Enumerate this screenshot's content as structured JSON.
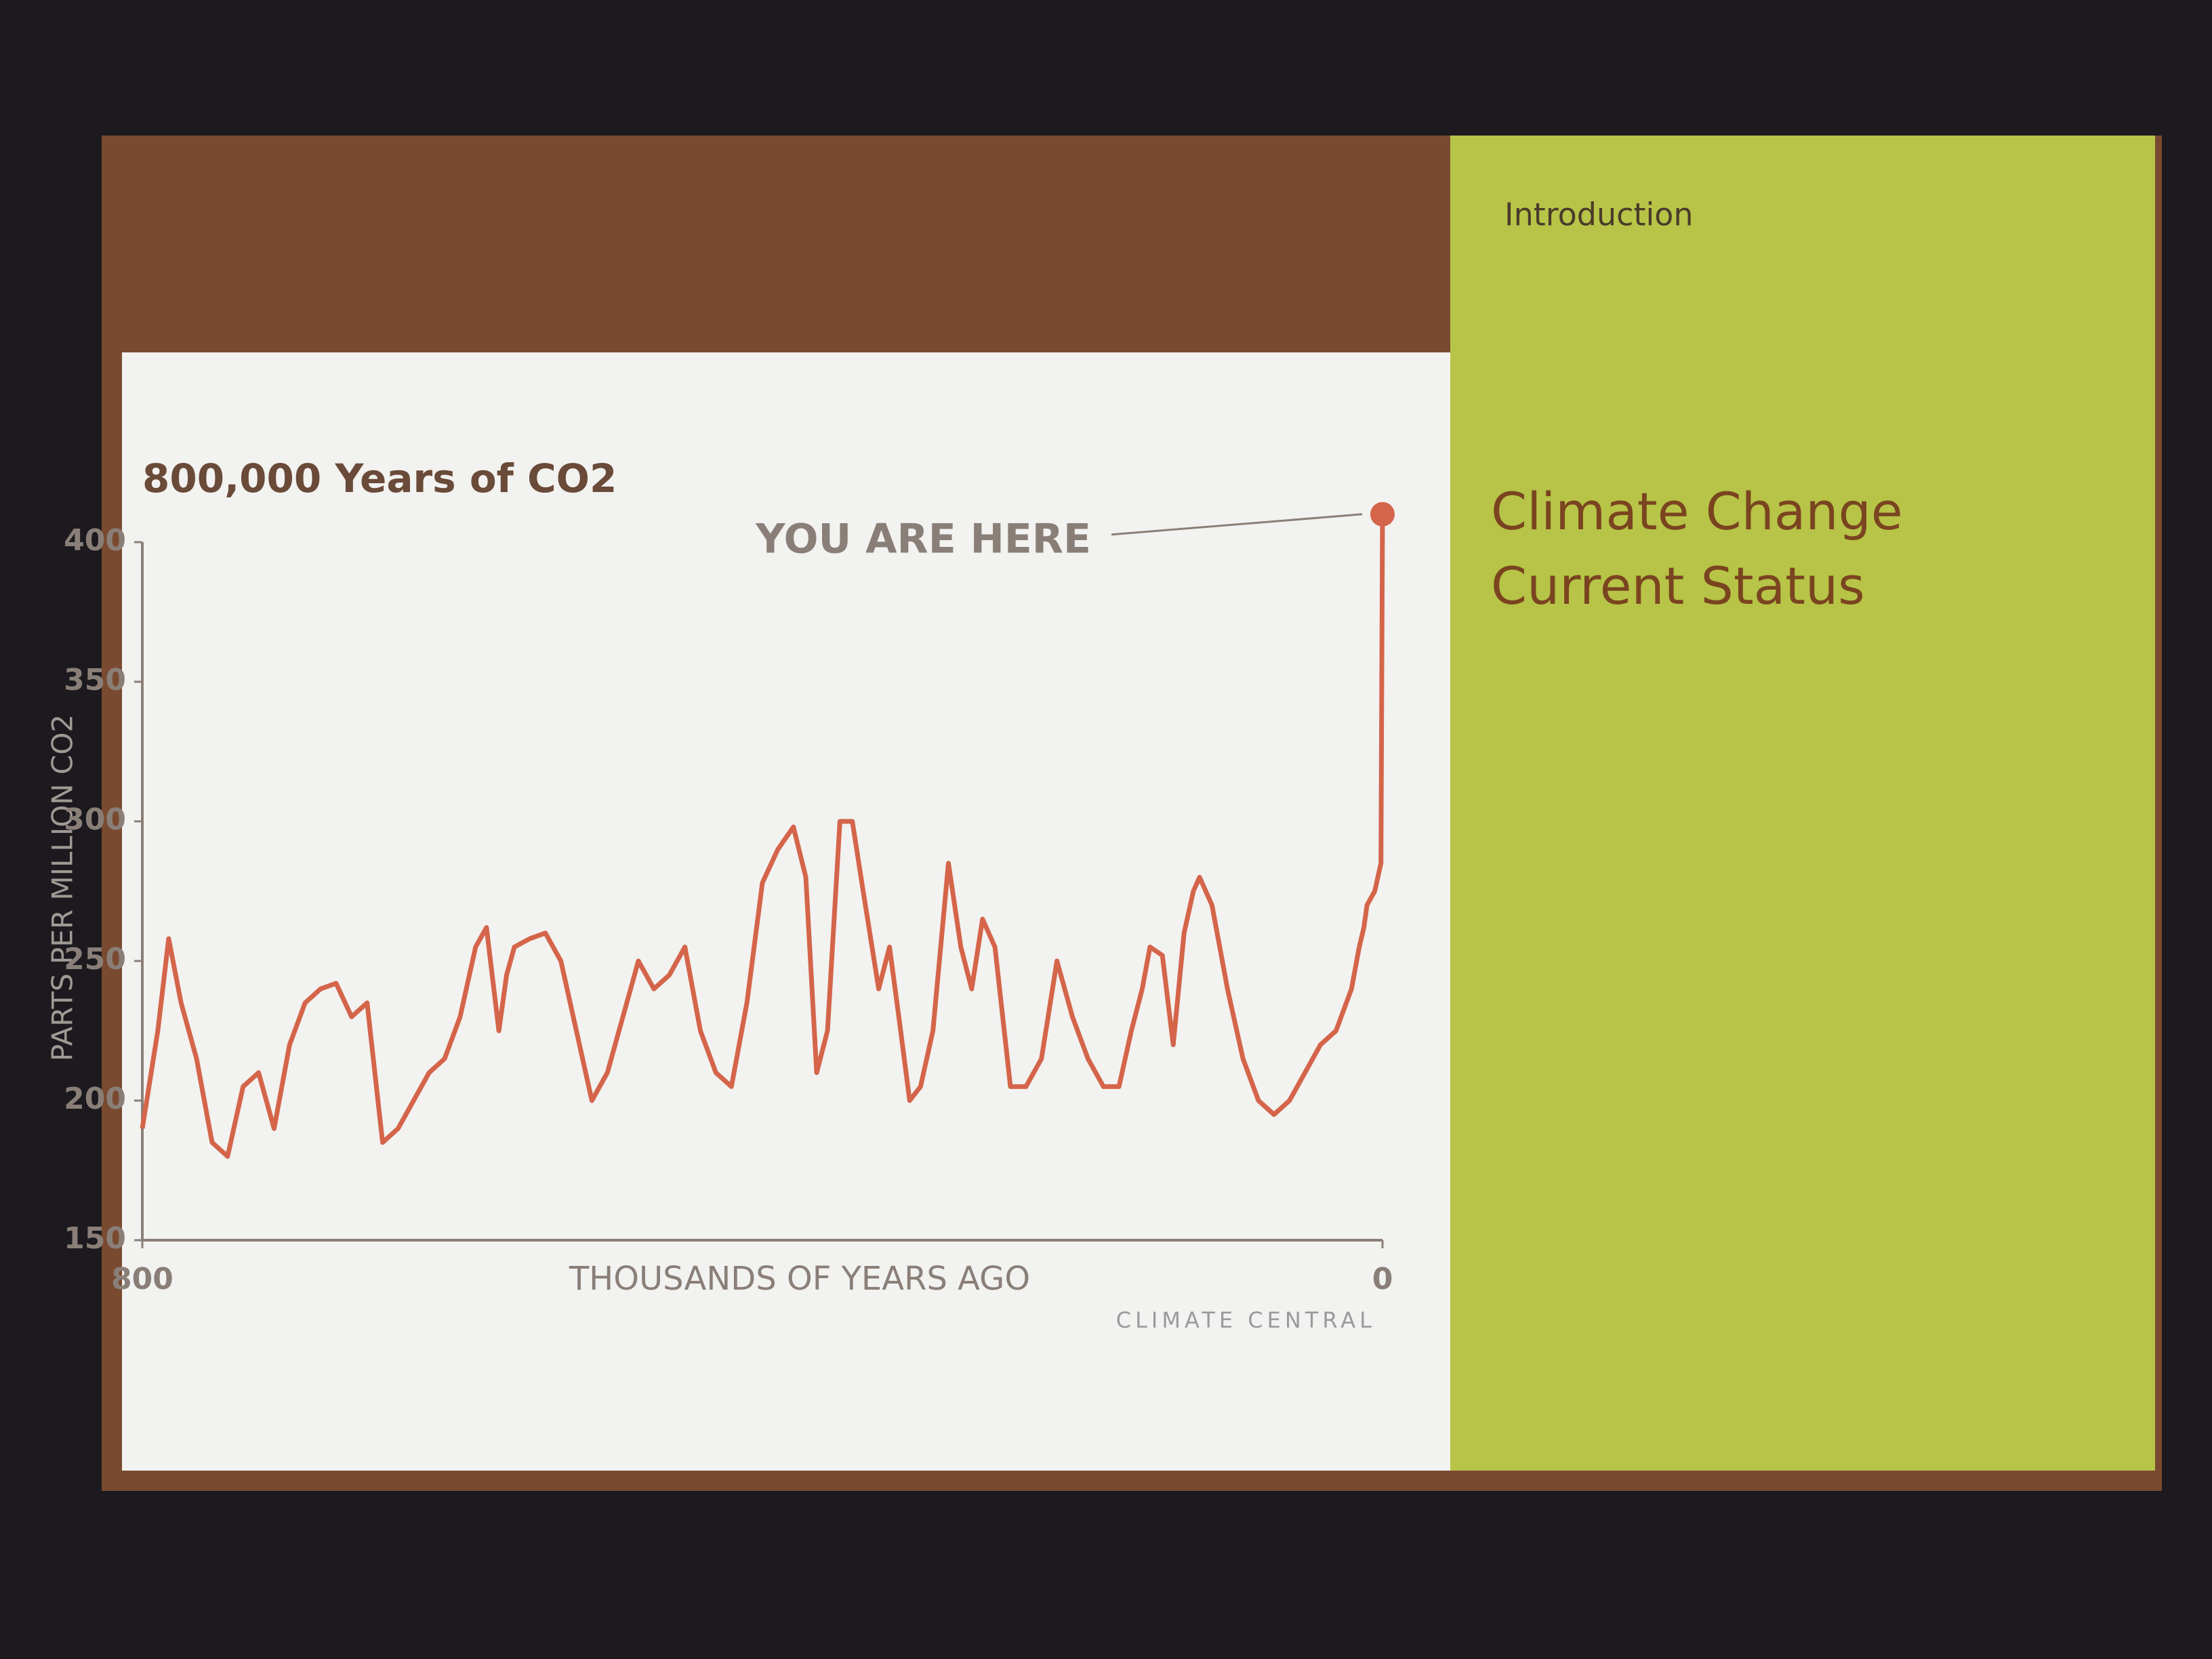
{
  "chart_data": {
    "type": "line",
    "title": "800,000 Years of CO2",
    "annotation": "YOU ARE HERE",
    "xlabel": "THOUSANDS OF YEARS AGO",
    "ylabel": "PARTS PER MILLION CO2",
    "source": "CLIMATE CENTRAL",
    "x": [
      800,
      790,
      783,
      775,
      765,
      755,
      745,
      735,
      725,
      715,
      705,
      695,
      685,
      675,
      665,
      655,
      645,
      635,
      625,
      615,
      605,
      595,
      585,
      578,
      570,
      565,
      560,
      550,
      540,
      530,
      520,
      510,
      500,
      490,
      480,
      470,
      460,
      450,
      440,
      430,
      420,
      410,
      400,
      390,
      380,
      372,
      365,
      358,
      350,
      342,
      335,
      325,
      318,
      312,
      305,
      298,
      290,
      280,
      272,
      265,
      258,
      250,
      240,
      230,
      220,
      210,
      200,
      190,
      180,
      170,
      162,
      155,
      150,
      142,
      135,
      128,
      122,
      118,
      110,
      100,
      90,
      80,
      70,
      60,
      50,
      40,
      30,
      20,
      15,
      12,
      10,
      5,
      1,
      0
    ],
    "values": [
      190,
      225,
      258,
      235,
      215,
      185,
      180,
      205,
      210,
      190,
      220,
      235,
      240,
      242,
      230,
      235,
      185,
      190,
      200,
      210,
      215,
      230,
      255,
      262,
      225,
      245,
      255,
      258,
      260,
      250,
      225,
      200,
      210,
      230,
      250,
      240,
      245,
      255,
      225,
      210,
      205,
      235,
      278,
      290,
      298,
      280,
      210,
      225,
      300,
      300,
      275,
      240,
      255,
      230,
      200,
      205,
      225,
      285,
      255,
      240,
      265,
      255,
      205,
      205,
      215,
      250,
      230,
      215,
      205,
      205,
      225,
      240,
      255,
      252,
      220,
      260,
      275,
      280,
      270,
      240,
      215,
      200,
      195,
      200,
      210,
      220,
      225,
      240,
      255,
      262,
      270,
      275,
      285,
      410
    ],
    "color": "#d4654a",
    "xlim": [
      800,
      0
    ],
    "ylim": [
      150,
      400
    ],
    "xticks": [
      800,
      0
    ],
    "yticks": [
      150,
      200,
      250,
      300,
      350,
      400
    ]
  },
  "sidebar": {
    "nav": [
      "Introduction"
    ],
    "heading": [
      "Climate Change",
      "Current Status"
    ]
  }
}
